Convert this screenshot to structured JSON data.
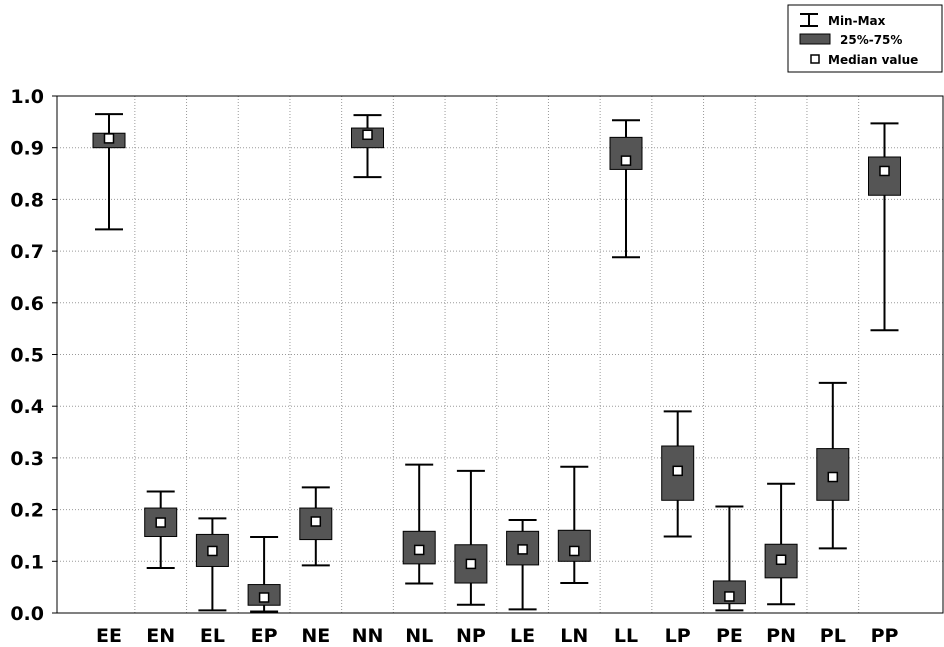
{
  "chart_data": {
    "type": "box",
    "categories": [
      "EE",
      "EN",
      "EL",
      "EP",
      "NE",
      "NN",
      "NL",
      "NP",
      "LE",
      "LN",
      "LL",
      "LP",
      "PE",
      "PN",
      "PL",
      "PP"
    ],
    "series": [
      {
        "name": "Min-Max",
        "min": [
          0.742,
          0.087,
          0.005,
          0.003,
          0.092,
          0.843,
          0.057,
          0.016,
          0.007,
          0.058,
          0.688,
          0.148,
          0.005,
          0.017,
          0.125,
          0.547
        ],
        "max": [
          0.965,
          0.235,
          0.183,
          0.147,
          0.243,
          0.963,
          0.287,
          0.275,
          0.18,
          0.283,
          0.953,
          0.39,
          0.206,
          0.25,
          0.445,
          0.947
        ]
      },
      {
        "name": "25%-75%",
        "q1": [
          0.9,
          0.148,
          0.09,
          0.015,
          0.142,
          0.9,
          0.095,
          0.058,
          0.093,
          0.1,
          0.858,
          0.218,
          0.018,
          0.068,
          0.218,
          0.808
        ],
        "q3": [
          0.928,
          0.203,
          0.152,
          0.055,
          0.203,
          0.938,
          0.158,
          0.132,
          0.158,
          0.16,
          0.92,
          0.323,
          0.062,
          0.133,
          0.318,
          0.882
        ]
      },
      {
        "name": "Median value",
        "median": [
          0.918,
          0.175,
          0.12,
          0.03,
          0.177,
          0.925,
          0.122,
          0.095,
          0.123,
          0.12,
          0.875,
          0.275,
          0.032,
          0.103,
          0.263,
          0.855
        ]
      }
    ],
    "yticks": [
      "0.0",
      "0.1",
      "0.2",
      "0.3",
      "0.4",
      "0.5",
      "0.6",
      "0.7",
      "0.8",
      "0.9",
      "1.0"
    ],
    "ylim": [
      0,
      1.0
    ],
    "grid": true,
    "legend_position": "top-right",
    "box_color": "#555555",
    "whisker_color": "#000000",
    "median_marker_color": "#ffffff"
  }
}
